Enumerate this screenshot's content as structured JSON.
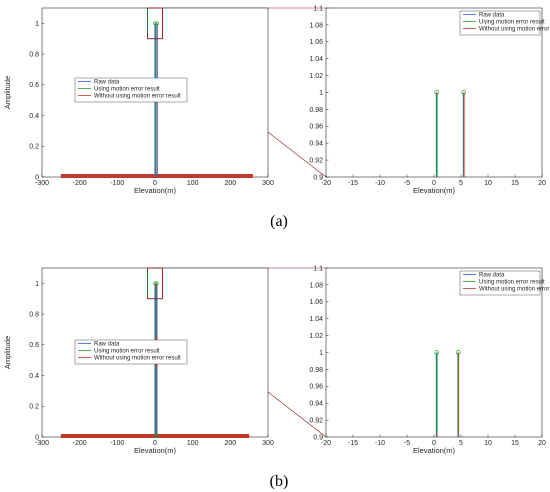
{
  "panel_labels": [
    "(a)",
    "(b)"
  ],
  "colors": {
    "raw": "#2b5fd6",
    "motion": "#2aa02a",
    "nomotion": "#c0392b",
    "zoom_box": "#8b1a1a"
  },
  "chart_data": [
    {
      "panel": "(a)",
      "type": "line",
      "plot": "main",
      "xlabel": "Elevation(m)",
      "ylabel": "Amplitude",
      "xlim": [
        -300,
        300
      ],
      "ylim": [
        0,
        1.1
      ],
      "xticks": [
        -300,
        -200,
        -100,
        0,
        100,
        200,
        300
      ],
      "xtick_labels": [
        "-300",
        "-200",
        "-100",
        "0",
        "100",
        "200",
        "300"
      ],
      "yticks": [
        0,
        0.2,
        0.4,
        0.6,
        0.8,
        1
      ],
      "ytick_labels": [
        "0",
        "0.2",
        "0.4",
        "0.6",
        "0.8",
        "1"
      ],
      "baseline_range": [
        -250,
        260
      ],
      "peaks": [
        0.5,
        5.5
      ],
      "legend": [
        "Raw data",
        "Using motion error result",
        "Without using motion error result"
      ],
      "legend_position": "center-left"
    },
    {
      "panel": "(a)",
      "type": "line",
      "plot": "zoom",
      "xlabel": "Elevation(m)",
      "ylabel": "",
      "xlim": [
        -20,
        20
      ],
      "ylim": [
        0.9,
        1.1
      ],
      "xticks": [
        -20,
        -15,
        -10,
        -5,
        0,
        5,
        10,
        15,
        20
      ],
      "xtick_labels": [
        "-20",
        "-15",
        "-10",
        "-5",
        "0",
        "5",
        "10",
        "15",
        "20"
      ],
      "yticks": [
        0.9,
        0.92,
        0.94,
        0.96,
        0.98,
        1,
        1.02,
        1.04,
        1.06,
        1.08,
        1.1
      ],
      "ytick_labels": [
        "0.9",
        "0.92",
        "0.94",
        "0.96",
        "0.98",
        "1",
        "1.02",
        "1.04",
        "1.06",
        "1.08",
        "1.1"
      ],
      "peaks": [
        0.5,
        5.5
      ],
      "peak_value": 1,
      "legend": [
        "Raw data",
        "Using motion error result",
        "Without using motion error result"
      ],
      "legend_position": "top-right"
    },
    {
      "panel": "(b)",
      "type": "line",
      "plot": "main",
      "xlabel": "Elevation(m)",
      "ylabel": "Amplitude",
      "xlim": [
        -300,
        300
      ],
      "ylim": [
        0,
        1.1
      ],
      "xticks": [
        -300,
        -200,
        -100,
        0,
        100,
        200,
        300
      ],
      "xtick_labels": [
        "-300",
        "-200",
        "-100",
        "0",
        "100",
        "200",
        "300"
      ],
      "yticks": [
        0,
        0.2,
        0.4,
        0.6,
        0.8,
        1
      ],
      "ytick_labels": [
        "0",
        "0.2",
        "0.4",
        "0.6",
        "0.8",
        "1"
      ],
      "baseline_range": [
        -250,
        250
      ],
      "peaks": [
        0.5,
        4.5
      ],
      "legend": [
        "Raw data",
        "Using motion error result",
        "Without using motion error result"
      ],
      "legend_position": "center-left"
    },
    {
      "panel": "(b)",
      "type": "line",
      "plot": "zoom",
      "xlabel": "Elevation(m)",
      "ylabel": "",
      "xlim": [
        -20,
        20
      ],
      "ylim": [
        0.9,
        1.1
      ],
      "xticks": [
        -20,
        -15,
        -10,
        -5,
        0,
        5,
        10,
        15,
        20
      ],
      "xtick_labels": [
        "-20",
        "-15",
        "-10",
        "-5",
        "0",
        "5",
        "10",
        "15",
        "20"
      ],
      "yticks": [
        0.9,
        0.92,
        0.94,
        0.96,
        0.98,
        1,
        1.02,
        1.04,
        1.06,
        1.08,
        1.1
      ],
      "ytick_labels": [
        "0.9",
        "0.92",
        "0.94",
        "0.96",
        "0.98",
        "1",
        "1.02",
        "1.04",
        "1.06",
        "1.08",
        "1.1"
      ],
      "peaks": [
        0.5,
        4.5
      ],
      "peak_value": 1,
      "legend": [
        "Raw data",
        "Using motion error result",
        "Without using motion error result"
      ],
      "legend_position": "top-right"
    }
  ]
}
